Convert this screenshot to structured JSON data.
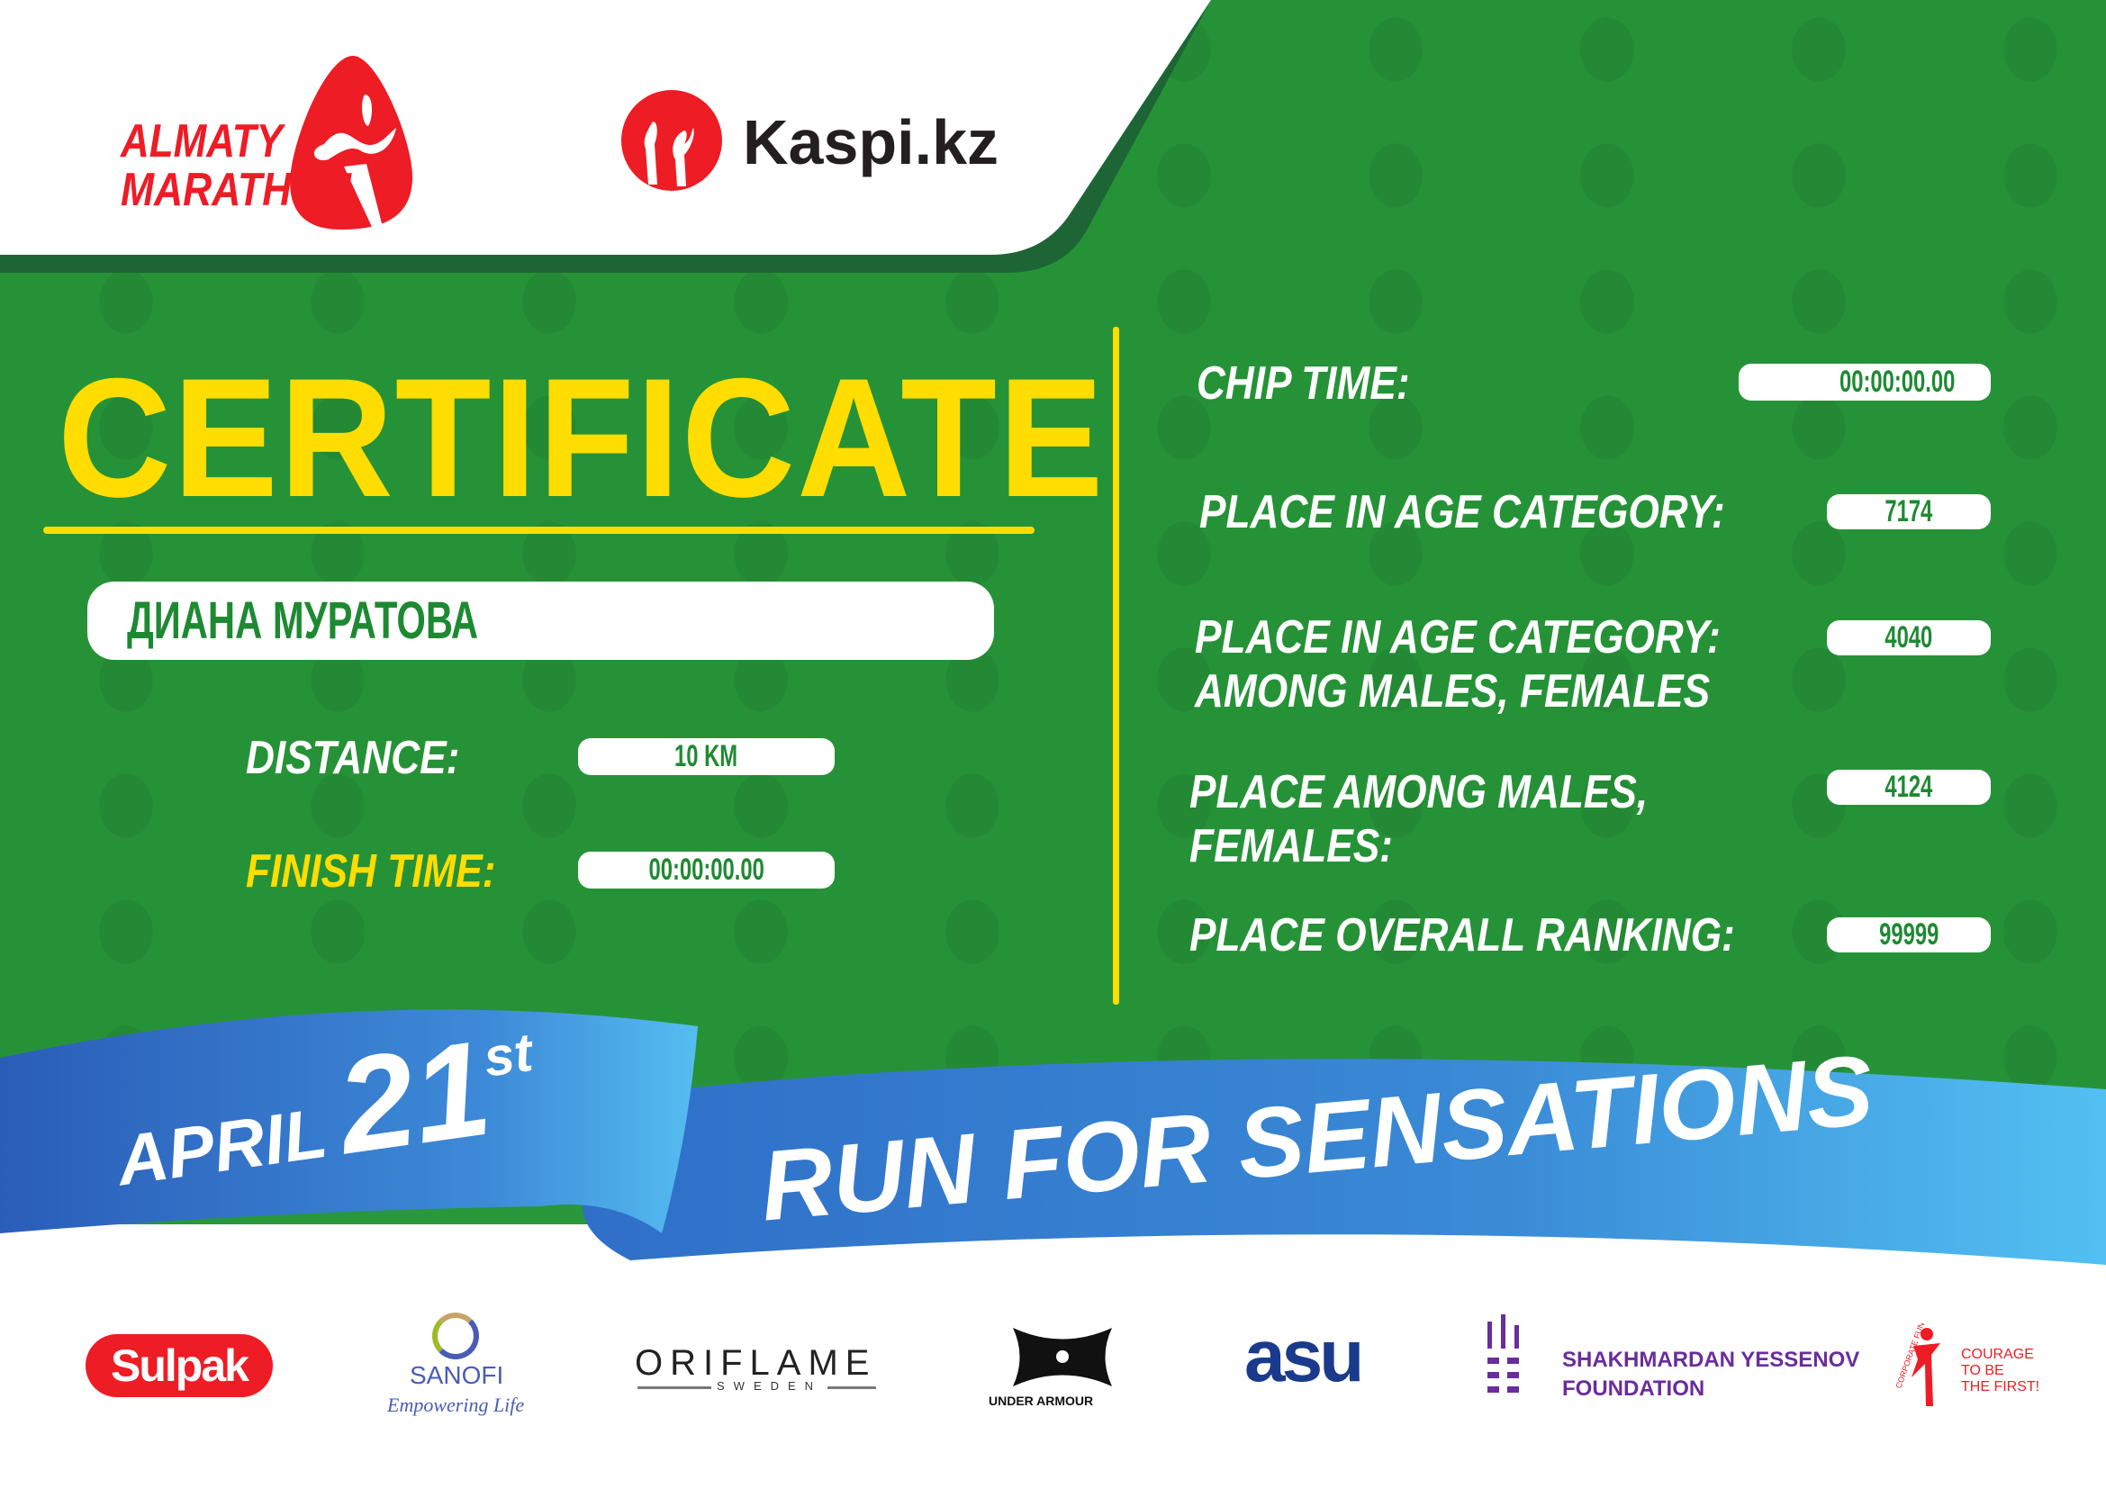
{
  "header": {
    "logo_main": "ALMATY MARATHON",
    "logo_sponsor": "Kaspi.kz"
  },
  "title": "CERTIFICATE",
  "participant": {
    "name": "ДИАНА МУРАТОВА"
  },
  "left_fields": [
    {
      "label": "DISTANCE:",
      "value": "10 KM"
    },
    {
      "label": "FINISH TIME:",
      "value": "00:00:00.00"
    }
  ],
  "right_fields": [
    {
      "label": "CHIP TIME:",
      "value": "00:00:00.00"
    },
    {
      "label": "PLACE IN AGE CATEGORY:",
      "value": "7174"
    },
    {
      "label_line1": "PLACE IN AGE CATEGORY:",
      "label_line2": "AMONG MALES, FEMALES",
      "value": "4040"
    },
    {
      "label_line1": "PLACE AMONG MALES,",
      "label_line2": "FEMALES:",
      "value": "4124"
    },
    {
      "label": "PLACE OVERALL RANKING:",
      "value": "99999"
    }
  ],
  "ribbon": {
    "month": "APRIL",
    "day": "21",
    "suffix": "st",
    "slogan": "RUN FOR SENSATIONS"
  },
  "sponsors": {
    "sulpak": "Sulpak",
    "sanofi": "SANOFI",
    "sanofi_tag": "Empowering Life",
    "oriflame": "ORIFLAME",
    "oriflame_sub": "SWEDEN",
    "under_armour": "UNDER ARMOUR",
    "asu": "asu",
    "yessenov_1": "SHAKHMARDAN YESSENOV",
    "yessenov_2": "FOUNDATION",
    "courage_1": "COURAGE",
    "courage_2": "TO BE",
    "courage_3": "THE FIRST!",
    "courage_arc": "CORPORATE FUND"
  },
  "colors": {
    "green": "#28983a",
    "dark_green": "#1e6535",
    "yellow": "#ffdd00",
    "red": "#ee1c25",
    "blue": "#2f7fd0"
  }
}
